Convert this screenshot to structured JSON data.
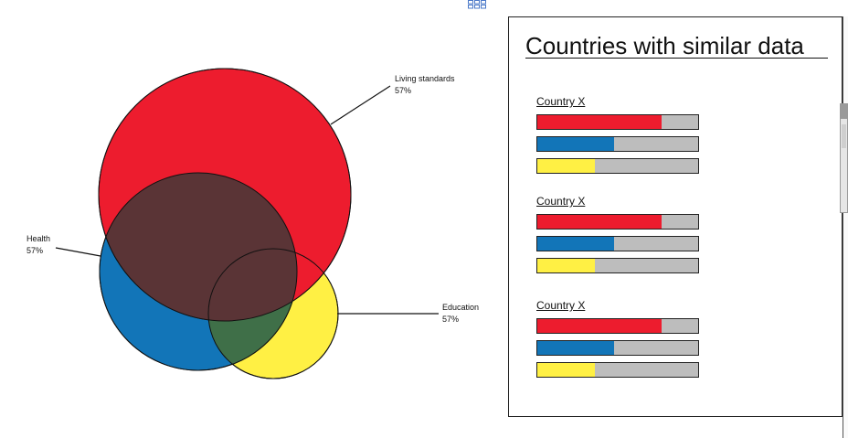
{
  "venn": {
    "circles": [
      {
        "name": "Living standards",
        "value_label": "57%",
        "color": "#ed1c2e"
      },
      {
        "name": "Health",
        "value_label": "57%",
        "color": "#1275b8"
      },
      {
        "name": "Education",
        "value_label": "57%",
        "color": "#fff044"
      }
    ],
    "overlap_colors": {
      "living_health": "#5a3436",
      "health_education": "#3f6f48"
    }
  },
  "panel": {
    "title": "Countries with similar data",
    "groups": [
      {
        "title": "Country X",
        "bars": [
          {
            "metric": "Living standards",
            "fraction": 0.77,
            "color": "#ed1c2e"
          },
          {
            "metric": "Health",
            "fraction": 0.48,
            "color": "#1275b8"
          },
          {
            "metric": "Education",
            "fraction": 0.36,
            "color": "#fff044"
          }
        ]
      },
      {
        "title": "Country X",
        "bars": [
          {
            "metric": "Living standards",
            "fraction": 0.77,
            "color": "#ed1c2e"
          },
          {
            "metric": "Health",
            "fraction": 0.48,
            "color": "#1275b8"
          },
          {
            "metric": "Education",
            "fraction": 0.36,
            "color": "#fff044"
          }
        ]
      },
      {
        "title": "Country X",
        "bars": [
          {
            "metric": "Living standards",
            "fraction": 0.77,
            "color": "#ed1c2e"
          },
          {
            "metric": "Health",
            "fraction": 0.48,
            "color": "#1275b8"
          },
          {
            "metric": "Education",
            "fraction": 0.36,
            "color": "#fff044"
          }
        ]
      }
    ]
  },
  "icons": {
    "corner": "grid-icon"
  }
}
